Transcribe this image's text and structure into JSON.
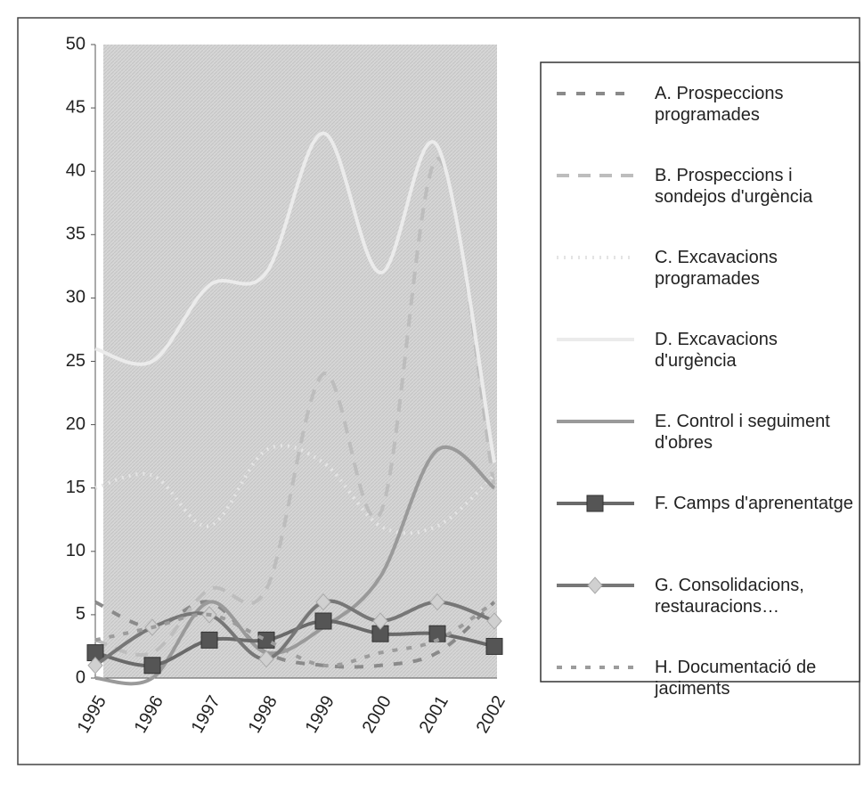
{
  "chart_data": {
    "type": "line",
    "categories": [
      "1995",
      "1996",
      "1997",
      "1998",
      "1999",
      "2000",
      "2001",
      "2002"
    ],
    "ylim": [
      0,
      50
    ],
    "yticks": [
      0,
      5,
      10,
      15,
      20,
      25,
      30,
      35,
      40,
      45,
      50
    ],
    "legend": "right",
    "series": [
      {
        "name": "A. Prospeccions programades",
        "color": "#8a8a8a",
        "dash": "10,12",
        "values": [
          6,
          4,
          6,
          2,
          1,
          1,
          2,
          6
        ]
      },
      {
        "name": "B. Prospeccions i sondejos d'urgència",
        "color": "#bdbdbd",
        "dash": "14,10",
        "values": [
          3,
          2,
          7,
          7,
          24,
          13,
          41,
          15
        ]
      },
      {
        "name": "C. Excavacions programades",
        "color": "#e4e4e4",
        "dash": "2,6",
        "values": [
          15,
          16,
          12,
          18,
          17,
          12,
          12,
          16
        ]
      },
      {
        "name": "D. Excavacions d'urgència",
        "color": "#ebebeb",
        "dash": "",
        "values": [
          26,
          25,
          31,
          32,
          43,
          32,
          42,
          17
        ]
      },
      {
        "name": "E. Control i seguiment d'obres",
        "color": "#9a9a9a",
        "dash": "",
        "values": [
          0,
          0,
          6,
          2,
          4,
          8,
          18,
          15
        ]
      },
      {
        "name": "F. Camps d'aprenentatge",
        "color": "#6a6a6a",
        "dash": "",
        "marker": "square",
        "values": [
          2,
          1,
          3,
          3,
          4.5,
          3.5,
          3.5,
          2.5
        ]
      },
      {
        "name": "G. Consolidacions, restauracions…",
        "color": "#777777",
        "dash": "",
        "marker": "diamond",
        "values": [
          1,
          4,
          5,
          1.5,
          6,
          4.5,
          6,
          4.5
        ]
      },
      {
        "name": "H. Documentació de jaciments",
        "color": "#9c9c9c",
        "dash": "6,10",
        "values": [
          3,
          4,
          5,
          3,
          1,
          2,
          3,
          6
        ]
      }
    ]
  }
}
